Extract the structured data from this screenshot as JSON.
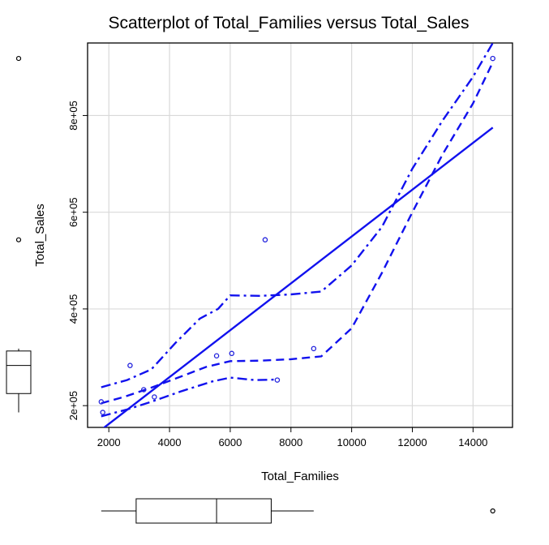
{
  "chart_data": {
    "type": "scatter",
    "title": "Scatterplot of Total_Families versus Total_Sales",
    "xlabel": "Total_Families",
    "ylabel": "Total_Sales",
    "xlim": [
      1300,
      15300
    ],
    "ylim": [
      155000,
      950000
    ],
    "x_ticks": [
      2000,
      4000,
      6000,
      8000,
      10000,
      12000,
      14000
    ],
    "x_tick_labels": [
      "2000",
      "4000",
      "6000",
      "8000",
      "10000",
      "12000",
      "14000"
    ],
    "y_ticks": [
      200000,
      400000,
      600000,
      800000
    ],
    "y_tick_labels": [
      "2e+05",
      "4e+05",
      "6e+05",
      "8e+05"
    ],
    "grid": true,
    "colors": {
      "points": "#2222dd",
      "lines": "#1111ee",
      "grid": "#d9d9d9",
      "boxplot": "#000000"
    },
    "points": [
      {
        "x": 1750,
        "y": 208000
      },
      {
        "x": 1800,
        "y": 186000
      },
      {
        "x": 2700,
        "y": 283000
      },
      {
        "x": 3150,
        "y": 233000
      },
      {
        "x": 3500,
        "y": 218000
      },
      {
        "x": 5550,
        "y": 303000
      },
      {
        "x": 6050,
        "y": 308000
      },
      {
        "x": 7150,
        "y": 543000
      },
      {
        "x": 7550,
        "y": 253000
      },
      {
        "x": 8750,
        "y": 318000
      },
      {
        "x": 14650,
        "y": 918000
      }
    ],
    "regression_line": [
      {
        "x": 1750,
        "y": 150000
      },
      {
        "x": 14650,
        "y": 775000
      }
    ],
    "smooth_center": [
      {
        "x": 1750,
        "y": 205000
      },
      {
        "x": 2500,
        "y": 218000
      },
      {
        "x": 3300,
        "y": 235000
      },
      {
        "x": 4200,
        "y": 256000
      },
      {
        "x": 5200,
        "y": 280000
      },
      {
        "x": 6000,
        "y": 292000
      },
      {
        "x": 7000,
        "y": 293000
      },
      {
        "x": 8000,
        "y": 296000
      },
      {
        "x": 9000,
        "y": 302000
      },
      {
        "x": 10000,
        "y": 360000
      },
      {
        "x": 11000,
        "y": 475000
      },
      {
        "x": 12000,
        "y": 600000
      },
      {
        "x": 13000,
        "y": 720000
      },
      {
        "x": 14000,
        "y": 825000
      },
      {
        "x": 14650,
        "y": 910000
      }
    ],
    "smooth_upper": [
      {
        "x": 1750,
        "y": 238000
      },
      {
        "x": 2600,
        "y": 253000
      },
      {
        "x": 3400,
        "y": 275000
      },
      {
        "x": 4200,
        "y": 330000
      },
      {
        "x": 5000,
        "y": 380000
      },
      {
        "x": 5600,
        "y": 400000
      },
      {
        "x": 6000,
        "y": 428000
      },
      {
        "x": 7000,
        "y": 427000
      },
      {
        "x": 8000,
        "y": 430000
      },
      {
        "x": 9000,
        "y": 436000
      },
      {
        "x": 10000,
        "y": 490000
      },
      {
        "x": 11000,
        "y": 570000
      },
      {
        "x": 12000,
        "y": 690000
      },
      {
        "x": 13000,
        "y": 790000
      },
      {
        "x": 14000,
        "y": 880000
      },
      {
        "x": 14650,
        "y": 950000
      }
    ],
    "smooth_lower": [
      {
        "x": 1750,
        "y": 178000
      },
      {
        "x": 2600,
        "y": 192000
      },
      {
        "x": 3400,
        "y": 208000
      },
      {
        "x": 4400,
        "y": 230000
      },
      {
        "x": 5400,
        "y": 250000
      },
      {
        "x": 6000,
        "y": 258000
      },
      {
        "x": 6800,
        "y": 253000
      },
      {
        "x": 7550,
        "y": 254000
      }
    ],
    "boxplot_x": {
      "whisker_low": 1750,
      "q1": 2900,
      "median": 5550,
      "q3": 7350,
      "whisker_high": 8750,
      "outliers": [
        14650
      ]
    },
    "boxplot_y": {
      "whisker_low": 186000,
      "q1": 225000,
      "median": 283000,
      "q3": 313000,
      "whisker_high": 318000,
      "outliers": [
        543000,
        918000
      ]
    }
  }
}
